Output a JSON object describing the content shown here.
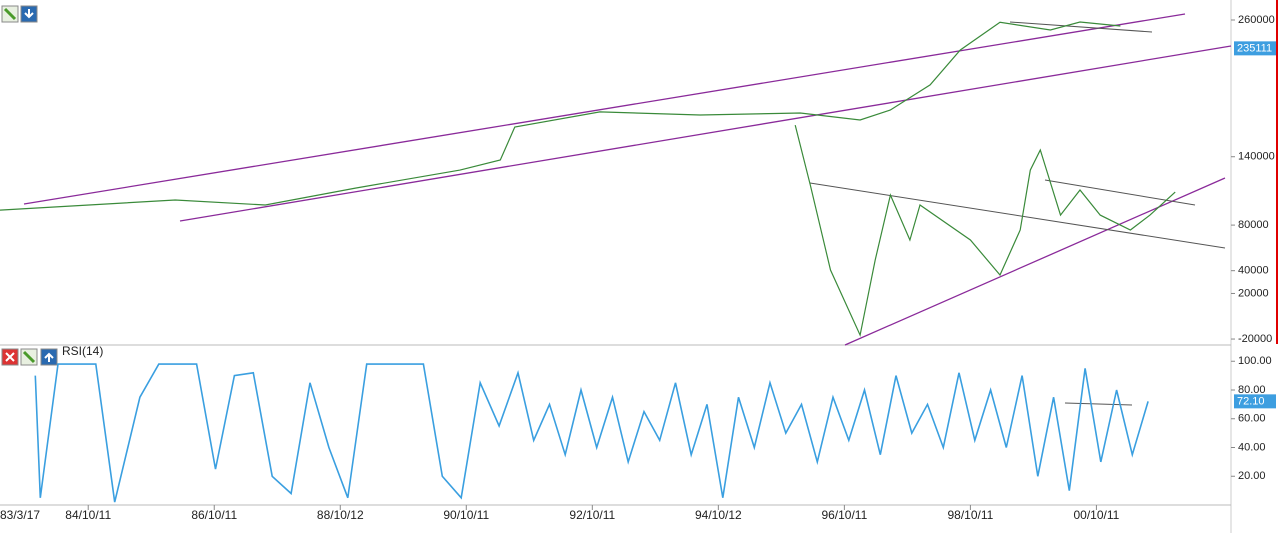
{
  "chart_data": [
    {
      "type": "line",
      "xlim": [
        1983.38,
        2002.9
      ],
      "ylim": [
        -24000,
        270000
      ],
      "yticks": [
        260000,
        140000,
        80000,
        40000,
        20000,
        -20000
      ],
      "last_value": 235111,
      "badge_color": "#3d9ee0",
      "series": [
        {
          "color": "#3a8a3a",
          "x": [
            1983.38,
            1986.16,
            1987.59,
            1989.02,
            1990.68,
            1991.32,
            1991.55,
            1992.9,
            1994.49,
            1996.08,
            1997.03,
            1997.51,
            1998.14,
            1998.62,
            1999.25,
            2000.05,
            2000.52,
            2001.16
          ],
          "values": [
            93200,
            102000,
            97600,
            112500,
            128300,
            137100,
            166100,
            179300,
            176600,
            178400,
            172200,
            181000,
            203000,
            233700,
            258000,
            251200,
            258200,
            254700
          ]
        },
        {
          "color": "#3a8a3a",
          "x": [
            1996.0,
            1996.24,
            1996.56,
            1997.03,
            1997.27,
            1997.51,
            1997.82,
            1997.98,
            1998.78,
            1999.25,
            1999.57,
            1999.73,
            1999.89,
            2000.21,
            2000.52,
            2000.84,
            2001.32,
            2001.63,
            2002.03
          ],
          "values": [
            167800,
            115200,
            40600,
            -16500,
            49400,
            106400,
            66900,
            97600,
            66900,
            36200,
            75700,
            128300,
            145900,
            88800,
            110800,
            88800,
            75700,
            88800,
            109000
          ]
        }
      ]
    },
    {
      "type": "line",
      "title": "RSI(14)",
      "xlim": [
        1983.38,
        2002.9
      ],
      "ylim": [
        0,
        100
      ],
      "yticks": [
        {
          "value": 100,
          "label": "100.00"
        },
        {
          "value": 80,
          "label": "80.00"
        },
        {
          "value": 60,
          "label": "60.00"
        },
        {
          "value": 40,
          "label": "40.00"
        },
        {
          "value": 20,
          "label": "20.00"
        }
      ],
      "xticks": [
        {
          "value": 1983.21,
          "label": "83/3/17"
        },
        {
          "value": 1984.78,
          "label": "84/10/11"
        },
        {
          "value": 1986.78,
          "label": "86/10/11"
        },
        {
          "value": 1988.78,
          "label": "88/10/12"
        },
        {
          "value": 1990.78,
          "label": "90/10/11"
        },
        {
          "value": 1992.78,
          "label": "92/10/11"
        },
        {
          "value": 1994.78,
          "label": "94/10/12"
        },
        {
          "value": 1996.78,
          "label": "96/10/11"
        },
        {
          "value": 1998.78,
          "label": "98/10/11"
        },
        {
          "value": 2000.78,
          "label": "00/10/11"
        }
      ],
      "last_value": {
        "value": 72.1,
        "label": "72.10"
      },
      "badge_color": "#3d9ee0",
      "series": [
        {
          "color": "#3a9fe0",
          "x": [
            1983.94,
            1984.02,
            1984.3,
            1984.6,
            1984.9,
            1985.2,
            1985.6,
            1985.9,
            1986.2,
            1986.5,
            1986.8,
            1987.1,
            1987.4,
            1987.7,
            1988.0,
            1988.3,
            1988.6,
            1988.9,
            1989.2,
            1989.5,
            1989.8,
            1990.1,
            1990.4,
            1990.7,
            1991.0,
            1991.3,
            1991.6,
            1991.85,
            1992.1,
            1992.35,
            1992.6,
            1992.85,
            1993.1,
            1993.35,
            1993.6,
            1993.85,
            1994.1,
            1994.35,
            1994.6,
            1994.85,
            1995.1,
            1995.35,
            1995.6,
            1995.85,
            1996.1,
            1996.35,
            1996.6,
            1996.85,
            1997.1,
            1997.35,
            1997.6,
            1997.85,
            1998.1,
            1998.35,
            1998.6,
            1998.85,
            1999.1,
            1999.35,
            1999.6,
            1999.85,
            2000.1,
            2000.35,
            2000.6,
            2000.85,
            2001.1,
            2001.35,
            2001.6
          ],
          "values": [
            90,
            5,
            98,
            98,
            98,
            2,
            75,
            98,
            98,
            98,
            25,
            90,
            92,
            20,
            8,
            85,
            40,
            5,
            98,
            98,
            98,
            98,
            20,
            5,
            85,
            55,
            92,
            45,
            70,
            35,
            80,
            40,
            75,
            30,
            65,
            45,
            85,
            35,
            70,
            5,
            75,
            40,
            85,
            50,
            70,
            30,
            75,
            45,
            80,
            35,
            90,
            50,
            70,
            40,
            92,
            45,
            80,
            40,
            90,
            20,
            75,
            10,
            95,
            30,
            80,
            35,
            72.1
          ]
        }
      ]
    }
  ]
}
